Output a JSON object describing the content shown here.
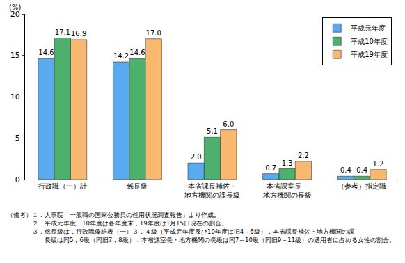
{
  "chart_data": {
    "type": "bar",
    "ylabel": "(%)",
    "categories": [
      "行政職（一）計",
      "係長級",
      "本省課長補佐・\n地方機関の課長級",
      "本省課室長・\n地方機関の長級",
      "（参考）指定職"
    ],
    "series": [
      {
        "name": "平成元年度",
        "color": "#5aaaf0",
        "values": [
          14.6,
          14.2,
          2.0,
          0.7,
          0.4
        ]
      },
      {
        "name": "平成10年度",
        "color": "#4db06c",
        "values": [
          17.1,
          14.6,
          5.1,
          1.3,
          0.4
        ]
      },
      {
        "name": "平成19年度",
        "color": "#f8b870",
        "values": [
          16.9,
          17.0,
          6.0,
          2.2,
          1.2
        ]
      }
    ],
    "ylim": [
      0,
      20
    ],
    "yticks": [
      0,
      5,
      10,
      15,
      20
    ],
    "grid": false,
    "legend": "upper right",
    "data_labels": true,
    "notes": [
      "（備考）１．人事院「一般職の国家公務員の任用状況調査報告」より作成。",
      "　　　　２．平成元年度，10年度は各年度末，19年度は1月15日現在の割合。",
      "　　　　３．係長級は，行政職俸給表（一）３，４級（平成元年度及び10年度は旧4～6級），本省課長補佐・地方機関の課",
      "　　　　　　長級は同5，6級（同旧7，8級），本省課室長・地方機関の長級は同7～10級（同旧9～11級）の適用者に占める女性の割合。"
    ]
  }
}
